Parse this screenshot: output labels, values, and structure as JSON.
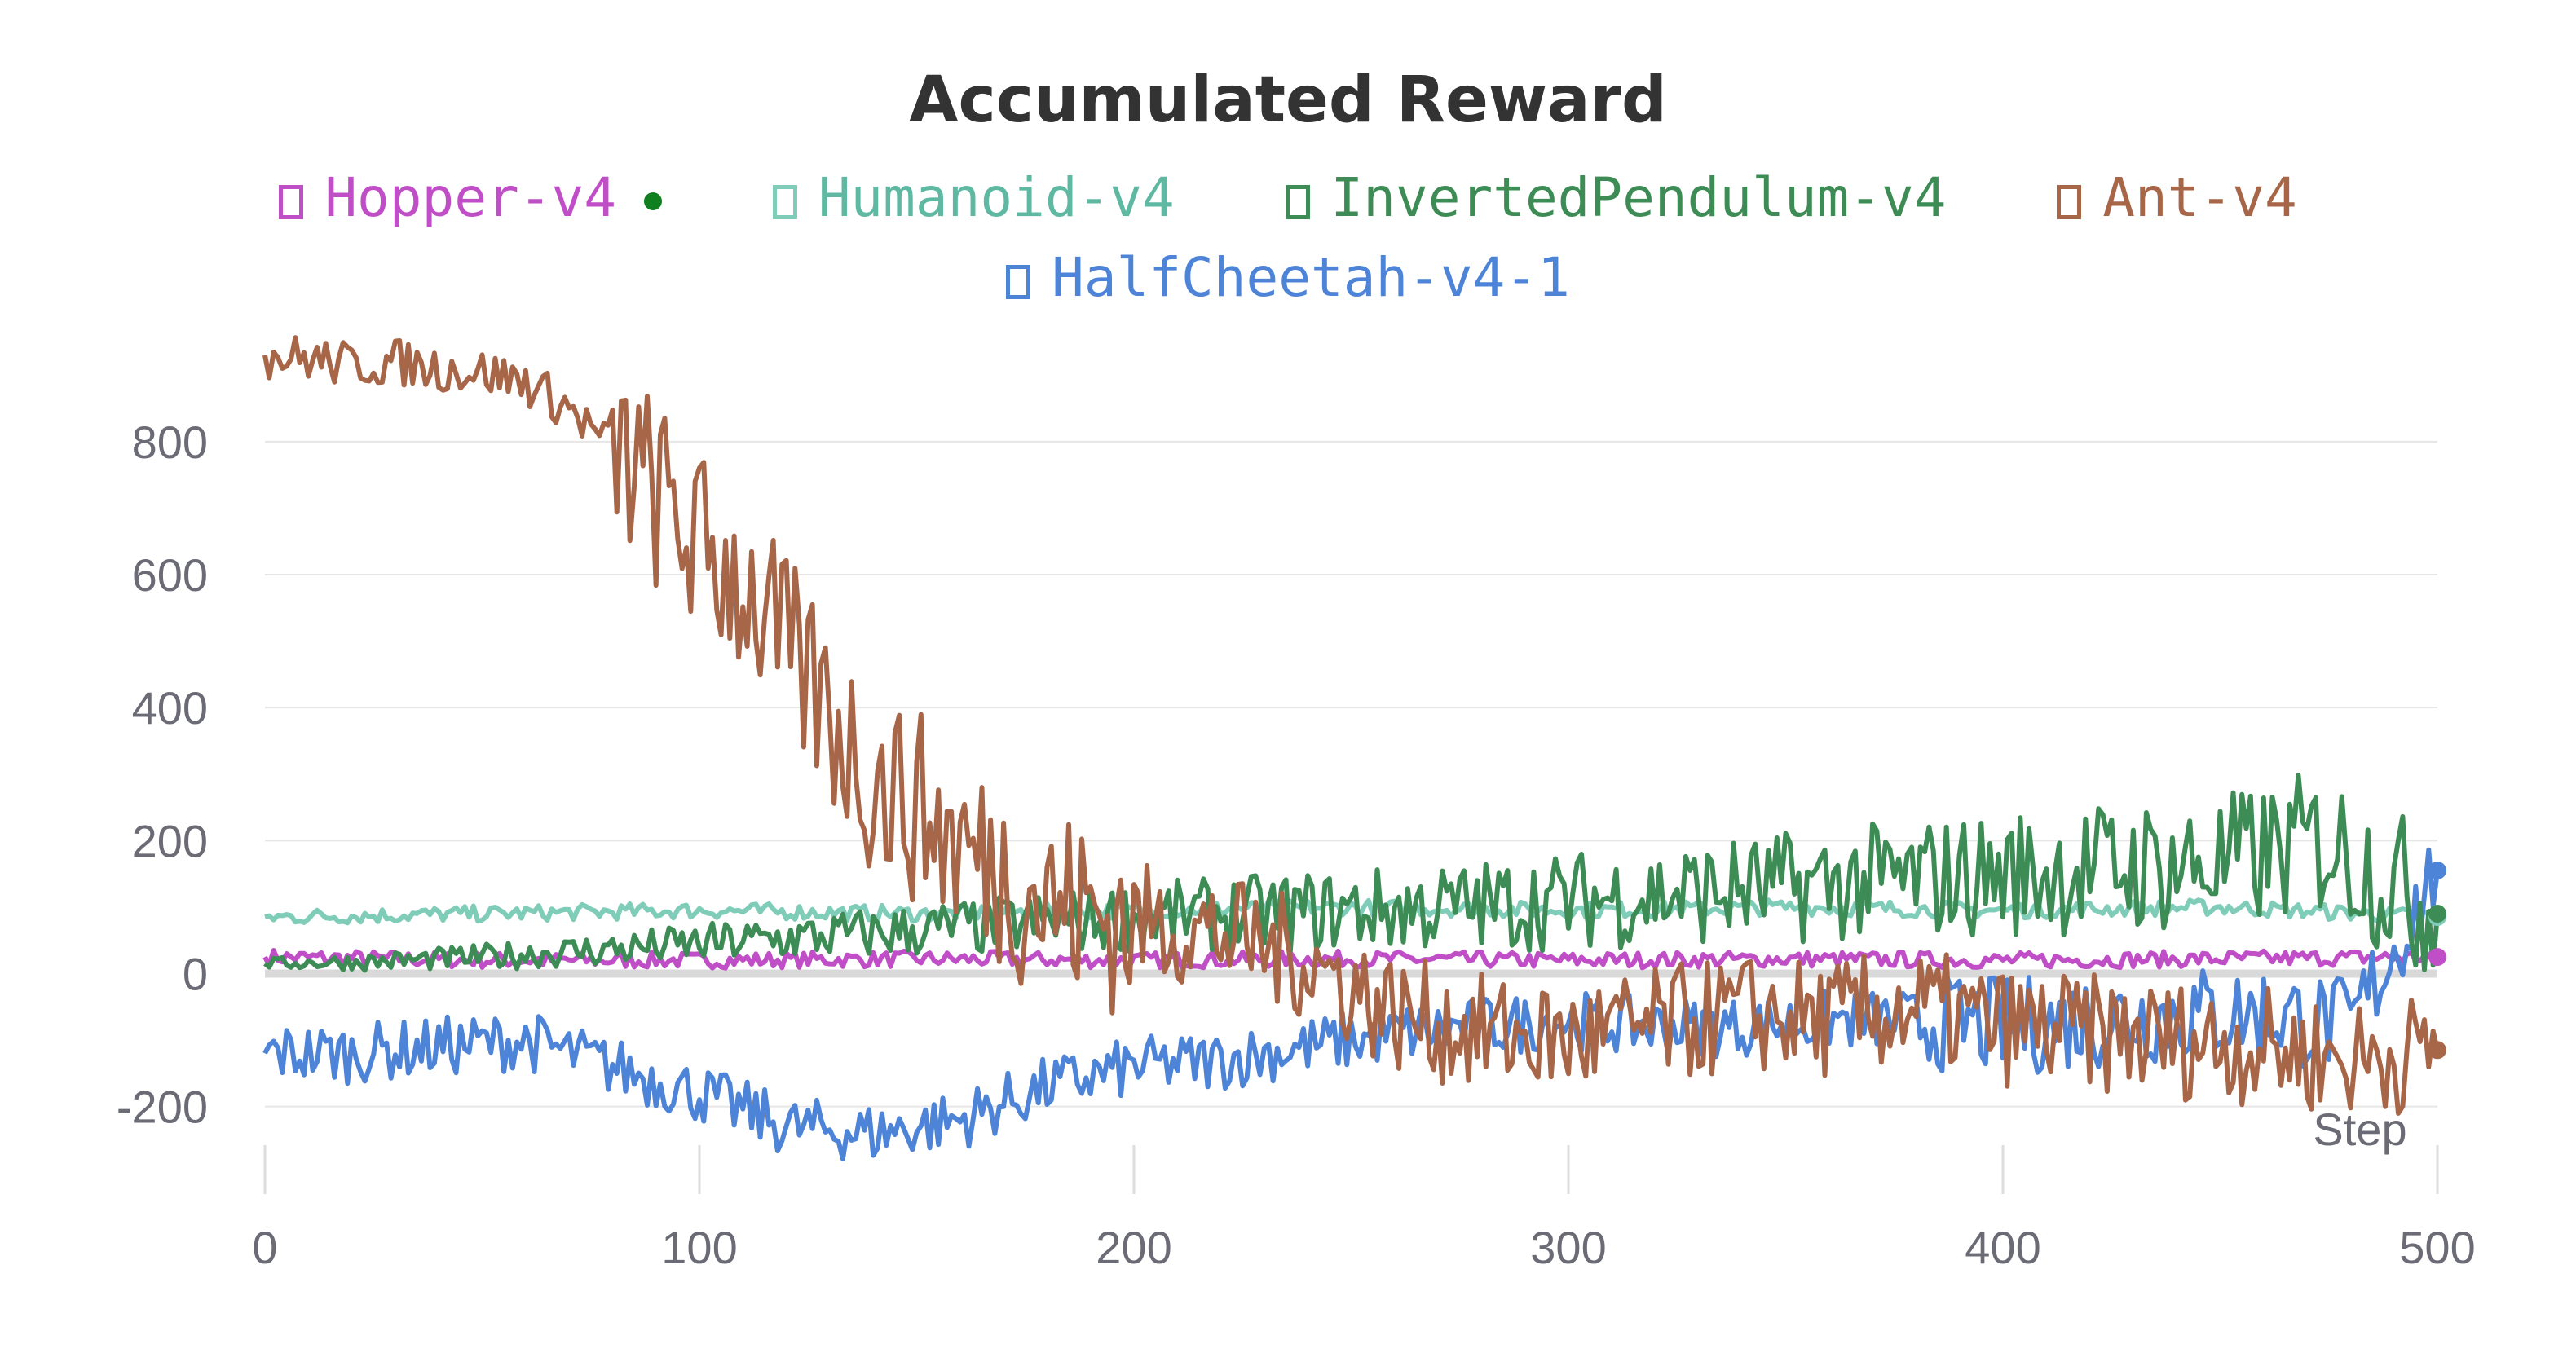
{
  "chart_data": {
    "type": "line",
    "title": "Accumulated Reward",
    "xlabel": "Step",
    "ylabel": "",
    "xlim": [
      0,
      500
    ],
    "ylim": [
      -350,
      980
    ],
    "x_ticks": [
      "0",
      "100",
      "200",
      "300",
      "400",
      "500"
    ],
    "y_ticks": [
      "800",
      "600",
      "400",
      "200",
      "0",
      "-200"
    ],
    "grid": "horizontal",
    "legend_position": "top-center",
    "series": [
      {
        "name": "Hopper-v4",
        "color": "#c04fc7",
        "description": "noisy flat line around 10-35",
        "x": [
          0,
          50,
          100,
          150,
          200,
          250,
          300,
          350,
          400,
          450,
          500
        ],
        "values": [
          25,
          20,
          20,
          22,
          20,
          22,
          20,
          22,
          20,
          22,
          25
        ]
      },
      {
        "name": "Humanoid-v4",
        "color": "#7fcdb8",
        "x": [
          0,
          50,
          100,
          150,
          200,
          250,
          300,
          350,
          400,
          450,
          500
        ],
        "values": [
          85,
          90,
          95,
          90,
          95,
          100,
          95,
          100,
          95,
          100,
          85
        ]
      },
      {
        "name": "InvertedPendulum-v4",
        "color": "#3e8c55",
        "x": [
          0,
          25,
          50,
          75,
          100,
          125,
          150,
          175,
          200,
          225,
          250,
          275,
          300,
          325,
          350,
          375,
          400,
          425,
          450,
          475,
          500
        ],
        "values": [
          15,
          18,
          25,
          35,
          45,
          55,
          65,
          75,
          85,
          90,
          95,
          100,
          110,
          120,
          130,
          140,
          150,
          160,
          165,
          200,
          90
        ]
      },
      {
        "name": "Ant-v4",
        "color": "#a86648",
        "x": [
          0,
          10,
          20,
          30,
          40,
          50,
          60,
          70,
          80,
          90,
          100,
          110,
          120,
          130,
          140,
          150,
          160,
          170,
          180,
          190,
          200,
          220,
          240,
          260,
          280,
          300,
          320,
          340,
          360,
          380,
          400,
          420,
          440,
          460,
          480,
          500
        ],
        "values": [
          930,
          925,
          915,
          920,
          910,
          905,
          890,
          850,
          790,
          720,
          640,
          590,
          480,
          390,
          290,
          250,
          190,
          150,
          110,
          90,
          80,
          60,
          20,
          -60,
          -90,
          -100,
          -80,
          -60,
          -70,
          -50,
          -80,
          -90,
          -100,
          -110,
          -130,
          -115
        ]
      },
      {
        "name": "HalfCheetah-v4-1",
        "color": "#4d84d8",
        "x": [
          0,
          20,
          40,
          60,
          80,
          100,
          120,
          140,
          160,
          180,
          200,
          220,
          240,
          260,
          280,
          300,
          320,
          340,
          360,
          380,
          400,
          420,
          440,
          460,
          480,
          500
        ],
        "values": [
          -120,
          -120,
          -110,
          -100,
          -140,
          -180,
          -230,
          -240,
          -220,
          -170,
          -140,
          -130,
          -110,
          -90,
          -80,
          -70,
          -80,
          -80,
          -70,
          -70,
          -80,
          -70,
          -60,
          -60,
          -80,
          155
        ]
      }
    ]
  }
}
